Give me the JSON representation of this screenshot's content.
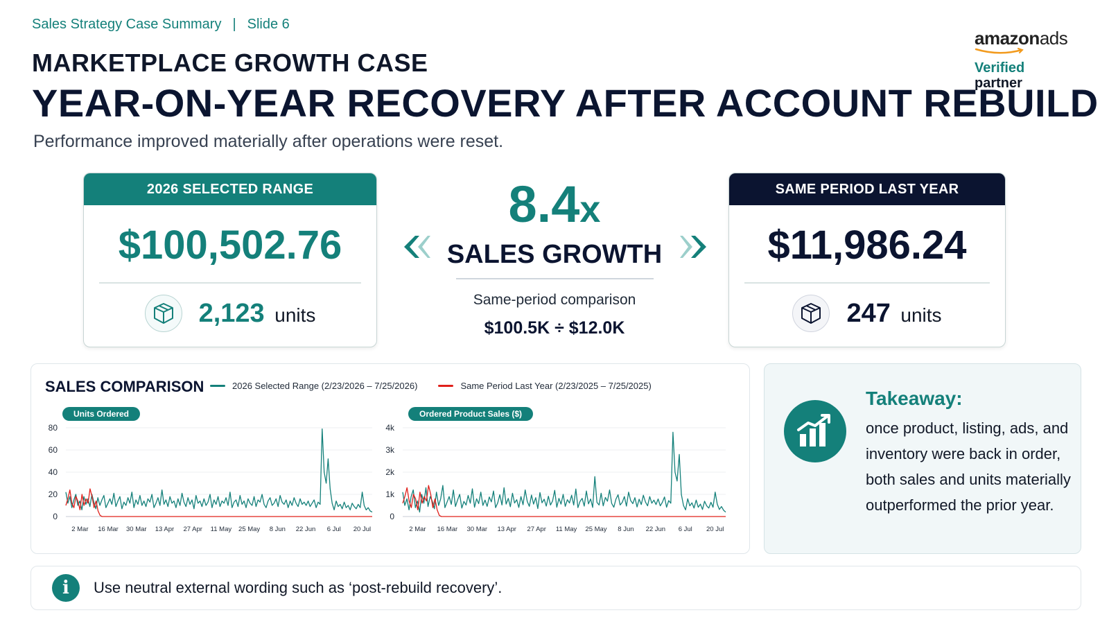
{
  "header": {
    "breadcrumb_section": "Sales Strategy Case Summary",
    "breadcrumb_separator": "|",
    "breadcrumb_slide": "Slide 6",
    "kicker": "MARKETPLACE GROWTH CASE",
    "title": "YEAR-ON-YEAR RECOVERY AFTER ACCOUNT REBUILD",
    "subtitle": "Performance improved materially after operations were reset."
  },
  "brand": {
    "logo_text_bold": "amazon",
    "logo_text": "ads",
    "verified": "Verified",
    "partner": "partner"
  },
  "kpi_current": {
    "header": "2026 SELECTED RANGE",
    "value": "$100,502.76",
    "units_value": "2,123",
    "units_label": "units"
  },
  "kpi_prior": {
    "header": "SAME PERIOD LAST YEAR",
    "value": "$11,986.24",
    "units_value": "247",
    "units_label": "units"
  },
  "growth": {
    "value": "8.4",
    "suffix": "x",
    "label": "SALES GROWTH",
    "note": "Same-period comparison",
    "formula": "$100.5K ÷ $12.0K"
  },
  "sales_comparison": {
    "title": "SALES COMPARISON",
    "legend_current": "2026 Selected Range (2/23/2026 – 7/25/2026)",
    "legend_prior": "Same Period Last Year (2/23/2025 – 7/25/2025)",
    "colors": {
      "current": "#14807a",
      "prior": "#e0201b"
    }
  },
  "chart_data": [
    {
      "type": "line",
      "title": "Units Ordered",
      "ylim": [
        0,
        80
      ],
      "yticks": [
        "0",
        "20",
        "40",
        "60",
        "80"
      ],
      "xticks": [
        "2 Mar",
        "16 Mar",
        "30 Mar",
        "13 Apr",
        "27 Apr",
        "11 May",
        "25 May",
        "8 Jun",
        "22 Jun",
        "6 Jul",
        "20 Jul"
      ],
      "x_range_days": [
        0,
        152
      ],
      "series": [
        {
          "name": "2026 Selected Range (2/23/2026 – 7/25/2026)",
          "values": [
            22,
            12,
            18,
            8,
            15,
            20,
            10,
            14,
            6,
            18,
            11,
            16,
            9,
            20,
            13,
            7,
            17,
            10,
            15,
            19,
            8,
            12,
            16,
            11,
            21,
            9,
            14,
            18,
            7,
            13,
            10,
            17,
            12,
            22,
            8,
            15,
            11,
            19,
            10,
            14,
            9,
            16,
            13,
            20,
            8,
            12,
            17,
            10,
            24,
            11,
            15,
            9,
            18,
            12,
            14,
            8,
            16,
            10,
            21,
            13,
            9,
            17,
            11,
            15,
            7,
            19,
            12,
            14,
            9,
            16,
            10,
            13,
            20,
            8,
            15,
            11,
            18,
            9,
            14,
            12,
            17,
            10,
            22,
            8,
            13,
            15,
            9,
            19,
            11,
            14,
            8,
            16,
            12,
            10,
            18,
            9,
            15,
            13,
            20,
            11,
            8,
            14,
            17,
            10,
            12,
            16,
            9,
            19,
            13,
            11,
            15,
            8,
            14,
            10,
            17,
            12,
            9,
            16,
            11,
            13,
            10,
            14,
            9,
            12,
            15,
            8,
            13,
            11,
            79,
            40,
            30,
            52,
            25,
            12,
            6,
            14,
            9,
            11,
            7,
            13,
            8,
            10,
            6,
            12,
            9,
            7,
            11,
            8,
            22,
            10,
            6,
            8,
            5,
            4
          ],
          "color": "#14807a"
        },
        {
          "name": "Same Period Last Year (2/23/2025 – 7/25/2025)",
          "values": [
            10,
            16,
            24,
            12,
            8,
            18,
            14,
            6,
            20,
            10,
            16,
            12,
            25,
            18,
            8,
            14,
            5,
            1,
            0,
            0,
            0,
            0,
            0,
            0,
            0,
            0,
            0,
            0,
            0,
            0,
            0,
            0,
            0,
            0,
            0,
            0,
            0,
            0,
            0,
            0,
            0,
            0,
            0,
            0,
            0,
            0,
            0,
            0,
            0,
            0,
            0,
            0,
            0,
            0,
            0,
            0,
            0,
            0,
            0,
            0,
            0,
            0,
            0,
            0,
            0,
            0,
            0,
            0,
            0,
            0,
            0,
            0,
            0,
            0,
            0,
            0,
            0,
            0,
            0,
            0,
            0,
            0,
            0,
            0,
            0,
            0,
            0,
            0,
            0,
            0,
            0,
            0,
            0,
            0,
            0,
            0,
            0,
            0,
            0,
            0,
            0,
            0,
            0,
            0,
            0,
            0,
            0,
            0,
            0,
            0,
            0,
            0,
            0,
            0,
            0,
            0,
            0,
            0,
            0,
            0,
            0,
            0,
            0,
            0,
            0,
            0,
            0,
            0,
            0,
            0,
            0,
            0,
            0,
            0,
            0,
            0,
            0,
            0,
            0,
            0,
            0,
            0,
            0,
            0,
            0,
            0,
            0,
            0,
            0,
            0,
            0,
            0,
            0
          ],
          "color": "#e0201b"
        }
      ]
    },
    {
      "type": "line",
      "title": "Ordered Product Sales ($)",
      "ylim": [
        0,
        4000
      ],
      "yticks": [
        "0",
        "1k",
        "2k",
        "3k",
        "4k"
      ],
      "xticks": [
        "2 Mar",
        "16 Mar",
        "30 Mar",
        "13 Apr",
        "27 Apr",
        "11 May",
        "25 May",
        "8 Jun",
        "22 Jun",
        "6 Jul",
        "20 Jul"
      ],
      "x_range_days": [
        0,
        152
      ],
      "series": [
        {
          "name": "2026 Selected Range (2/23/2026 – 7/25/2026)",
          "values": [
            1100,
            500,
            800,
            300,
            900,
            1200,
            400,
            700,
            200,
            1000,
            600,
            1300,
            450,
            900,
            700,
            350,
            1100,
            500,
            800,
            1400,
            400,
            650,
            900,
            550,
            1200,
            450,
            750,
            1000,
            380,
            680,
            520,
            950,
            600,
            1250,
            420,
            800,
            580,
            1100,
            500,
            740,
            460,
            880,
            660,
            1150,
            400,
            620,
            980,
            520,
            1300,
            560,
            820,
            440,
            1050,
            610,
            760,
            410,
            900,
            530,
            1200,
            680,
            460,
            970,
            560,
            850,
            360,
            1080,
            620,
            780,
            470,
            920,
            520,
            700,
            1180,
            420,
            820,
            560,
            1000,
            460,
            760,
            610,
            960,
            520,
            1240,
            400,
            680,
            820,
            470,
            1150,
            570,
            790,
            410,
            1800,
            640,
            520,
            1050,
            480,
            860,
            690,
            1200,
            590,
            420,
            780,
            980,
            520,
            640,
            900,
            470,
            1100,
            720,
            580,
            850,
            430,
            780,
            540,
            960,
            650,
            480,
            900,
            600,
            740,
            540,
            790,
            480,
            640,
            880,
            420,
            720,
            600,
            3800,
            2000,
            1600,
            2800,
            1000,
            500,
            300,
            800,
            480,
            620,
            380,
            740,
            420,
            560,
            320,
            690,
            480,
            380,
            640,
            420,
            1100,
            560,
            320,
            450,
            280,
            200
          ],
          "color": "#14807a"
        },
        {
          "name": "Same Period Last Year (2/23/2025 – 7/25/2025)",
          "values": [
            600,
            900,
            1300,
            700,
            400,
            1000,
            800,
            300,
            1100,
            600,
            900,
            700,
            1400,
            1000,
            400,
            800,
            300,
            50,
            0,
            0,
            0,
            0,
            0,
            0,
            0,
            0,
            0,
            0,
            0,
            0,
            0,
            0,
            0,
            0,
            0,
            0,
            0,
            0,
            0,
            0,
            0,
            0,
            0,
            0,
            0,
            0,
            0,
            0,
            0,
            0,
            0,
            0,
            0,
            0,
            0,
            0,
            0,
            0,
            0,
            0,
            0,
            0,
            0,
            0,
            0,
            0,
            0,
            0,
            0,
            0,
            0,
            0,
            0,
            0,
            0,
            0,
            0,
            0,
            0,
            0,
            0,
            0,
            0,
            0,
            0,
            0,
            0,
            0,
            0,
            0,
            0,
            0,
            0,
            0,
            0,
            0,
            0,
            0,
            0,
            0,
            0,
            0,
            0,
            0,
            0,
            0,
            0,
            0,
            0,
            0,
            0,
            0,
            0,
            0,
            0,
            0,
            0,
            0,
            0,
            0,
            0,
            0,
            0,
            0,
            0,
            0,
            0,
            0,
            0,
            0,
            0,
            0,
            0,
            0,
            0,
            0,
            0,
            0,
            0,
            0,
            0,
            0,
            0,
            0,
            0,
            0,
            0,
            0,
            0,
            0,
            0
          ],
          "color": "#e0201b"
        }
      ]
    }
  ],
  "takeaway": {
    "title": "Takeaway:",
    "text": "once product, listing, ads, and inventory were back in order, both sales and units materially outperformed the prior year."
  },
  "info": {
    "icon": "i",
    "text": "Use neutral external wording such as ‘post-rebuild recovery’."
  }
}
